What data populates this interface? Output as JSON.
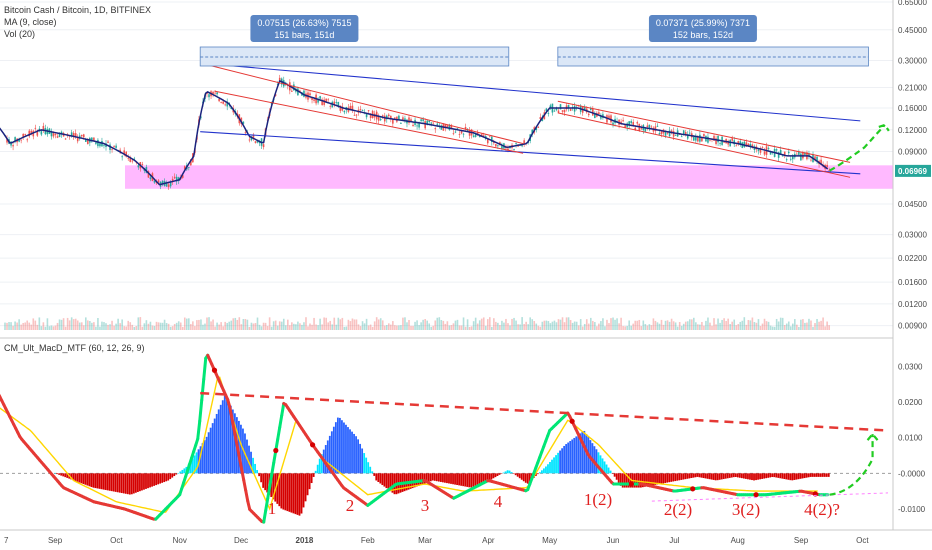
{
  "header": {
    "symbol_line": "Bitcoin Cash / Bitcoin, 1D, BITFINEX",
    "ma_line": "MA (9, close)",
    "vol_line": "Vol (20)",
    "indicator_line": "CM_Ult_MacD_MTF (60, 12, 26, 9)"
  },
  "colors": {
    "up": "#26a69a",
    "down": "#ef5350",
    "ma": "#1a237e",
    "channel_blue": "#2233cc",
    "channel_red": "#e53935",
    "support_zone": "#ff80ff",
    "macd_up": "#00e676",
    "macd_down": "#e53935",
    "signal": "#ffd600",
    "hist_up": "#2962ff",
    "hist_light": "#00e5ff",
    "hist_down": "#d50000",
    "measure": "#5b86c4"
  },
  "chart_data": [
    {
      "type": "candlestick",
      "title": "Bitcoin Cash / Bitcoin, 1D, BITFINEX",
      "scale": "log",
      "ylim": [
        0.0085,
        0.65
      ],
      "y_ticks": [
        "0.65000",
        "0.45000",
        "0.30000",
        "0.21000",
        "0.16000",
        "0.12000",
        "0.09000",
        "0.06969",
        "0.04500",
        "0.03000",
        "0.02200",
        "0.01600",
        "0.01200",
        "0.00900"
      ],
      "x_ticks": [
        "7",
        "Sep",
        "Oct",
        "Nov",
        "Dec",
        "2018",
        "Feb",
        "Mar",
        "Apr",
        "May",
        "Jun",
        "Jul",
        "Aug",
        "Sep",
        "Oct"
      ],
      "last_price": "0.06969",
      "series": [
        {
          "name": "MA (9, close)",
          "points": [
            [
              "2017-08-01",
              0.14
            ],
            [
              "2017-08-10",
              0.1
            ],
            [
              "2017-08-25",
              0.12
            ],
            [
              "2017-09-10",
              0.11
            ],
            [
              "2017-09-25",
              0.1
            ],
            [
              "2017-10-10",
              0.08
            ],
            [
              "2017-10-22",
              0.058
            ],
            [
              "2017-11-01",
              0.062
            ],
            [
              "2017-11-08",
              0.085
            ],
            [
              "2017-11-14",
              0.2
            ],
            [
              "2017-11-25",
              0.17
            ],
            [
              "2017-12-05",
              0.11
            ],
            [
              "2017-12-12",
              0.1
            ],
            [
              "2017-12-20",
              0.23
            ],
            [
              "2018-01-01",
              0.19
            ],
            [
              "2018-01-20",
              0.16
            ],
            [
              "2018-02-10",
              0.14
            ],
            [
              "2018-03-01",
              0.13
            ],
            [
              "2018-03-25",
              0.115
            ],
            [
              "2018-04-10",
              0.095
            ],
            [
              "2018-04-20",
              0.1
            ],
            [
              "2018-05-01",
              0.16
            ],
            [
              "2018-05-15",
              0.16
            ],
            [
              "2018-06-05",
              0.13
            ],
            [
              "2018-07-01",
              0.115
            ],
            [
              "2018-08-01",
              0.1
            ],
            [
              "2018-08-25",
              0.085
            ],
            [
              "2018-09-05",
              0.085
            ],
            [
              "2018-09-15",
              0.07
            ]
          ]
        }
      ],
      "measurements": [
        {
          "line1": "0.07515 (26.63%) 7515",
          "line2": "151 bars, 151d"
        },
        {
          "line1": "0.07371 (25.99%) 7371",
          "line2": "152 bars, 152d"
        }
      ],
      "support_zone": [
        0.055,
        0.075
      ]
    },
    {
      "type": "line",
      "title": "CM_Ult_MacD_MTF (60, 12, 26, 9)",
      "ylim": [
        -0.0145,
        0.036
      ],
      "y_ticks": [
        "0.0300",
        "0.0200",
        "0.0100",
        "-0.0000",
        "-0.0100"
      ],
      "series": [
        {
          "name": "MACD",
          "points": [
            [
              "2017-08-01",
              0.026
            ],
            [
              "2017-08-15",
              0.01
            ],
            [
              "2017-09-05",
              -0.004
            ],
            [
              "2017-09-20",
              -0.008
            ],
            [
              "2017-10-05",
              -0.01
            ],
            [
              "2017-10-20",
              -0.013
            ],
            [
              "2017-11-01",
              -0.006
            ],
            [
              "2017-11-10",
              0.01
            ],
            [
              "2017-11-14",
              0.034
            ],
            [
              "2017-11-25",
              0.02
            ],
            [
              "2017-12-05",
              -0.01
            ],
            [
              "2017-12-12",
              -0.014
            ],
            [
              "2017-12-22",
              0.02
            ],
            [
              "2018-01-05",
              0.008
            ],
            [
              "2018-01-20",
              -0.004
            ],
            [
              "2018-02-01",
              -0.009
            ],
            [
              "2018-02-15",
              -0.003
            ],
            [
              "2018-03-01",
              -0.002
            ],
            [
              "2018-03-15",
              -0.007
            ],
            [
              "2018-04-01",
              -0.002
            ],
            [
              "2018-04-20",
              -0.005
            ],
            [
              "2018-05-01",
              0.012
            ],
            [
              "2018-05-10",
              0.017
            ],
            [
              "2018-05-20",
              0.005
            ],
            [
              "2018-06-01",
              -0.003
            ],
            [
              "2018-06-15",
              -0.003
            ],
            [
              "2018-07-01",
              -0.005
            ],
            [
              "2018-07-15",
              -0.004
            ],
            [
              "2018-08-01",
              -0.006
            ],
            [
              "2018-08-15",
              -0.006
            ],
            [
              "2018-09-01",
              -0.005
            ],
            [
              "2018-09-10",
              -0.006
            ],
            [
              "2018-09-15",
              -0.006
            ]
          ]
        },
        {
          "name": "Signal",
          "points": [
            [
              "2017-08-01",
              0.02
            ],
            [
              "2017-08-20",
              0.012
            ],
            [
              "2017-09-10",
              -0.002
            ],
            [
              "2017-10-01",
              -0.008
            ],
            [
              "2017-10-25",
              -0.011
            ],
            [
              "2017-11-10",
              0.002
            ],
            [
              "2017-11-20",
              0.028
            ],
            [
              "2017-12-01",
              0.008
            ],
            [
              "2017-12-15",
              -0.01
            ],
            [
              "2017-12-28",
              0.015
            ],
            [
              "2018-01-10",
              0.004
            ],
            [
              "2018-02-01",
              -0.006
            ],
            [
              "2018-03-01",
              -0.003
            ],
            [
              "2018-03-20",
              -0.005
            ],
            [
              "2018-04-20",
              -0.004
            ],
            [
              "2018-05-10",
              0.015
            ],
            [
              "2018-05-25",
              0.008
            ],
            [
              "2018-06-10",
              -0.002
            ],
            [
              "2018-07-10",
              -0.004
            ],
            [
              "2018-08-10",
              -0.005
            ],
            [
              "2018-09-10",
              -0.005
            ]
          ]
        }
      ],
      "histogram": [
        0.0,
        -0.002,
        -0.004,
        -0.005,
        -0.006,
        -0.004,
        -0.002,
        0.002,
        0.01,
        0.022,
        0.012,
        -0.004,
        -0.01,
        -0.012,
        0.004,
        0.016,
        0.01,
        -0.002,
        -0.006,
        -0.004,
        -0.002,
        -0.003,
        -0.004,
        -0.002,
        0.001,
        -0.003,
        0.002,
        0.008,
        0.012,
        0.004,
        -0.004,
        -0.004,
        -0.003,
        -0.002,
        -0.001,
        -0.002,
        -0.001,
        -0.002,
        -0.001,
        -0.002,
        -0.001,
        -0.001
      ],
      "wave_labels": [
        "1",
        "2",
        "3",
        "4",
        "1(2)",
        "2(2)",
        "3(2)",
        "4(2)?"
      ]
    }
  ]
}
